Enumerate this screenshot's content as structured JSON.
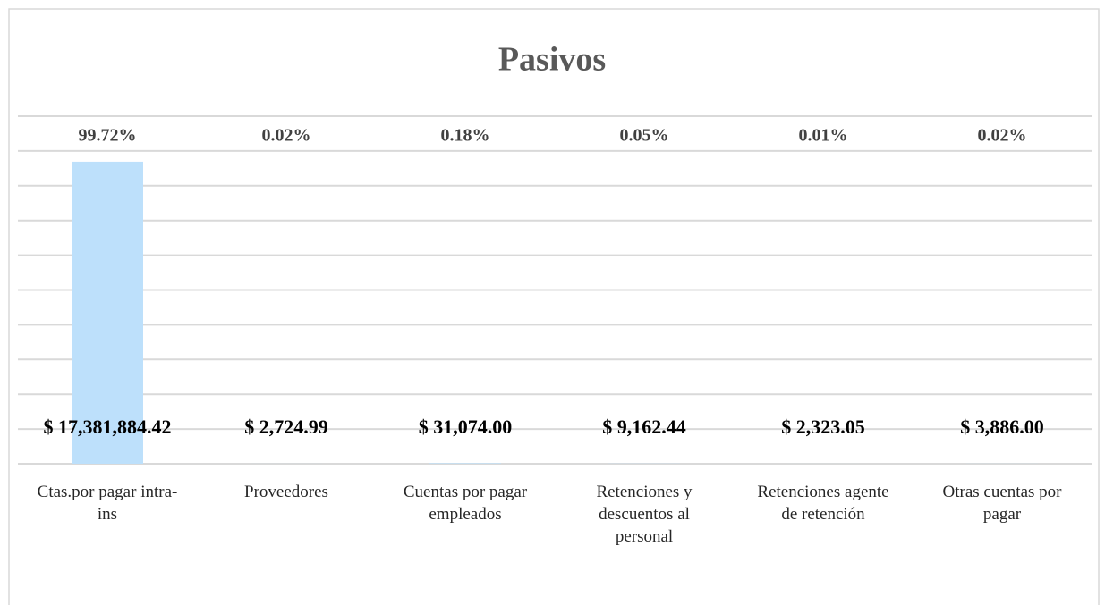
{
  "chart_data": {
    "type": "bar",
    "title": "Pasivos",
    "categories": [
      "Ctas.por pagar intra-ins",
      "Proveedores",
      "Cuentas por pagar empleados",
      "Retenciones y descuentos al personal",
      "Retenciones agente de retención",
      "Otras cuentas por pagar"
    ],
    "values": [
      17381884.42,
      2724.99,
      31074.0,
      9162.44,
      2323.05,
      3886.0
    ],
    "value_labels": [
      "$ 17,381,884.42",
      "$ 2,724.99",
      "$ 31,074.00",
      "$ 9,162.44",
      "$ 2,323.05",
      "$ 3,886.00"
    ],
    "shares": [
      99.72,
      0.02,
      0.18,
      0.05,
      0.01,
      0.02
    ],
    "share_labels": [
      "99.72%",
      "0.02%",
      "0.18%",
      "0.05%",
      "0.01%",
      "0.02%"
    ],
    "color": "#bde0fb",
    "ylim": [
      0,
      20000000
    ],
    "yticks": [
      0,
      2000000,
      4000000,
      6000000,
      8000000,
      10000000,
      12000000,
      14000000,
      16000000,
      18000000,
      20000000
    ],
    "grid": true
  }
}
